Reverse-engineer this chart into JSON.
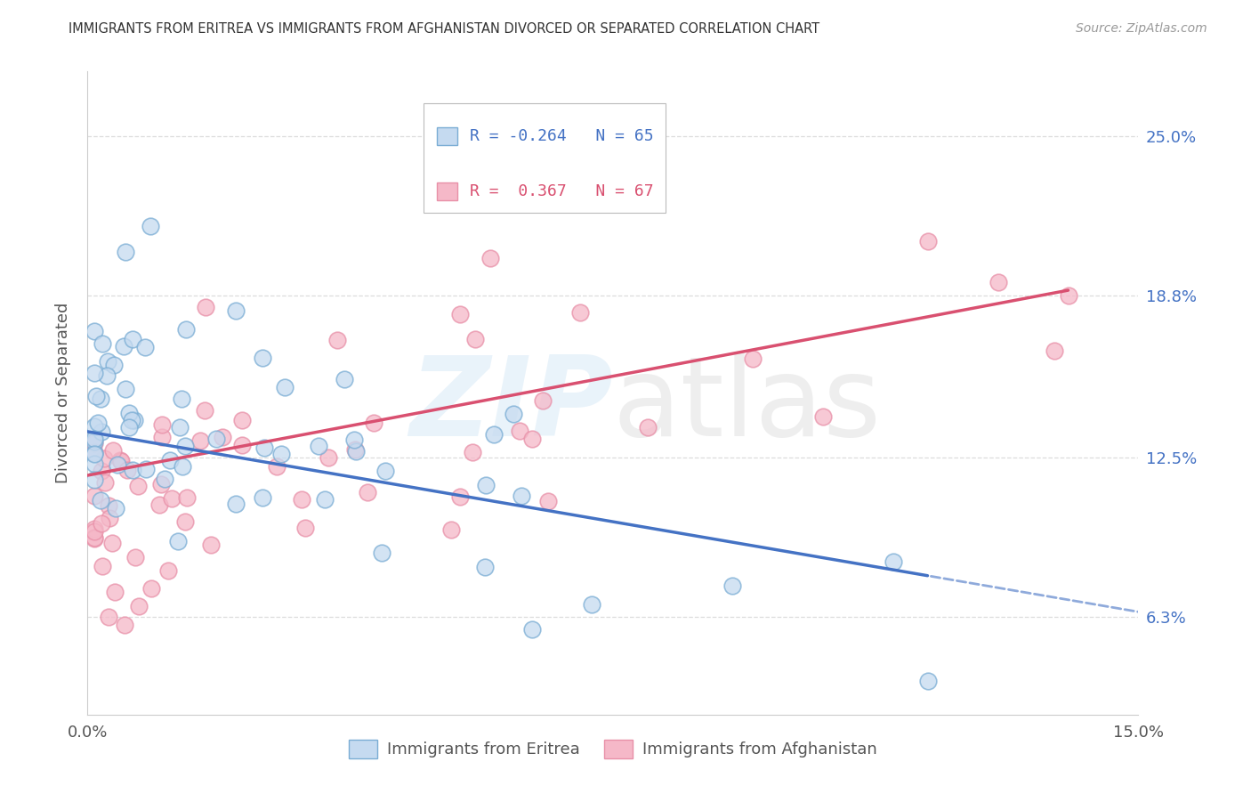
{
  "title": "IMMIGRANTS FROM ERITREA VS IMMIGRANTS FROM AFGHANISTAN DIVORCED OR SEPARATED CORRELATION CHART",
  "source": "Source: ZipAtlas.com",
  "ylabel": "Divorced or Separated",
  "ytick_labels": [
    "6.3%",
    "12.5%",
    "18.8%",
    "25.0%"
  ],
  "ytick_values": [
    0.063,
    0.125,
    0.188,
    0.25
  ],
  "xlim": [
    0.0,
    0.15
  ],
  "ylim": [
    0.025,
    0.275
  ],
  "r_eritrea": "-0.264",
  "n_eritrea": "65",
  "r_afghanistan": "0.367",
  "n_afghanistan": "67",
  "color_eritrea_fill": "#c5daf0",
  "color_eritrea_edge": "#7aadd4",
  "color_afghanistan_fill": "#f5b8c8",
  "color_afghanistan_edge": "#e890a8",
  "line_color_eritrea": "#4472c4",
  "line_color_afghanistan": "#d95070",
  "label_eritrea": "Immigrants from Eritrea",
  "label_afghanistan": "Immigrants from Afghanistan",
  "title_color": "#333333",
  "source_color": "#999999",
  "right_axis_color": "#4472c4",
  "grid_color": "#dddddd",
  "spine_color": "#cccccc"
}
